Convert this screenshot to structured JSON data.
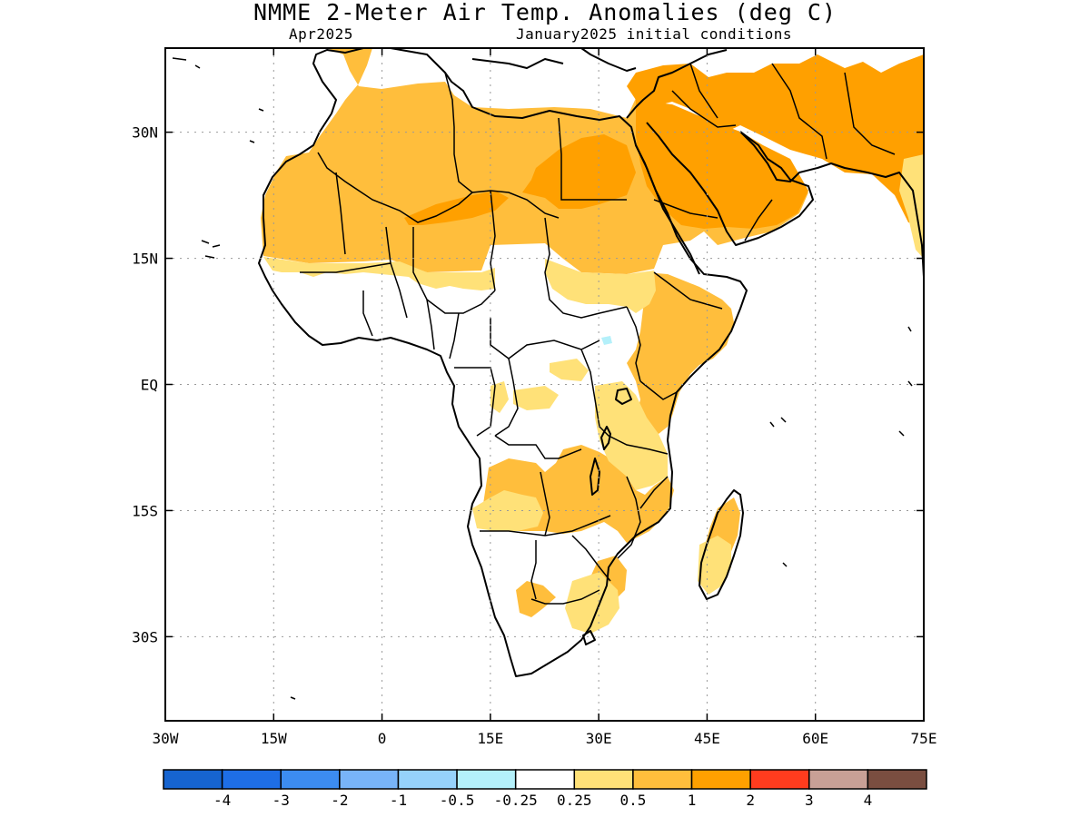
{
  "title": "NMME 2-Meter Air Temp. Anomalies (deg C)",
  "subtitle_left": "Apr2025",
  "subtitle_right": "January2025 initial conditions",
  "lon_ticks": [
    -30,
    -15,
    0,
    15,
    30,
    45,
    60,
    75
  ],
  "lat_ticks": [
    30,
    15,
    0,
    -15,
    -30
  ],
  "lon_labels": [
    "30W",
    "15W",
    "0",
    "15E",
    "30E",
    "45E",
    "60E",
    "75E"
  ],
  "lat_labels": [
    "30N",
    "15N",
    "EQ",
    "15S",
    "30S"
  ],
  "map_extent": {
    "lon": [
      -30,
      75
    ],
    "lat": [
      -40,
      40
    ]
  },
  "colorbar": {
    "colors": [
      "#1664d0",
      "#1e6ee6",
      "#3c8cf0",
      "#78b4f8",
      "#96d2fa",
      "#b4f0fa",
      "#ffffff",
      "#ffe178",
      "#ffbe3c",
      "#ffa000",
      "#ff3c1e",
      "#c8a096",
      "#7a4e40"
    ],
    "labels": [
      "-4",
      "-3",
      "-2",
      "-1",
      "-0.5",
      "-0.25",
      "0.25",
      "0.5",
      "1",
      "2",
      "3",
      "4"
    ]
  },
  "colors": {
    "land_outline": "#000000",
    "ocean": "#ffffff",
    "anomaly_0_5_to_1": "#ffbe3c",
    "anomaly_1_to_2": "#ffa000",
    "anomaly_0_25_to_0_5": "#ffe178",
    "anomaly_neg_0_5_to_neg_0_25": "#b4f0fa"
  }
}
